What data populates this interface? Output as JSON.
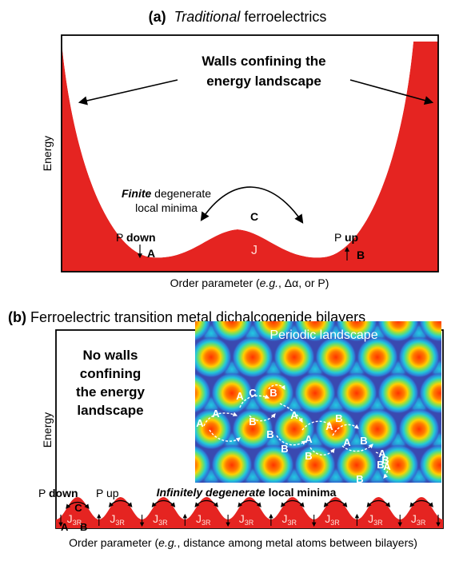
{
  "panel_a": {
    "label": "(a)",
    "title_italic": "Traditional",
    "title_rest": " ferroelectrics",
    "walls_line1": "Walls confining the",
    "walls_line2": "energy landscape",
    "y_axis": "Energy",
    "finite_italic": "Finite",
    "finite_rest": " degenerate",
    "finite_line2": "local minima",
    "c_label": "C",
    "j_label": "J",
    "p_down_prefix": "P ",
    "p_down_bold": "down",
    "p_up_prefix": "P ",
    "p_up_bold": "up",
    "a_label": "A",
    "b_label": "B",
    "x_axis_prefix": "Order parameter (",
    "x_axis_italic": "e.g.",
    "x_axis_suffix": ", Δα, or P)"
  },
  "panel_b": {
    "label": "(b)",
    "title": " Ferroelectric transition metal dichalcogenide bilayers",
    "no_walls_lines": [
      "No walls",
      "confining",
      "the energy",
      "landscape"
    ],
    "y_axis": "Energy",
    "inset_title": "Periodic landscape",
    "inset_labels": [
      "A",
      "C",
      "B",
      "A",
      "A",
      "B",
      "A",
      "B",
      "B",
      "A",
      "B",
      "A",
      "B",
      "A",
      "B",
      "A",
      "B",
      "A",
      "B",
      "B"
    ],
    "infinite_italic": "Infinitely degenerate",
    "infinite_rest": " local minima",
    "p_down_prefix": "P ",
    "p_down_bold": "down",
    "p_up": "P up",
    "c_label": "C",
    "a_label": "A",
    "b_label": "B",
    "j_main": "J",
    "j_sub": "3R",
    "x_axis_prefix": "Order parameter (",
    "x_axis_italic": "e.g.",
    "x_axis_suffix": ", distance among metal atoms between bilayers)"
  },
  "colors": {
    "well_fill": "#e52421",
    "frame": "#000000",
    "inset_bg": "#3a49b0"
  }
}
